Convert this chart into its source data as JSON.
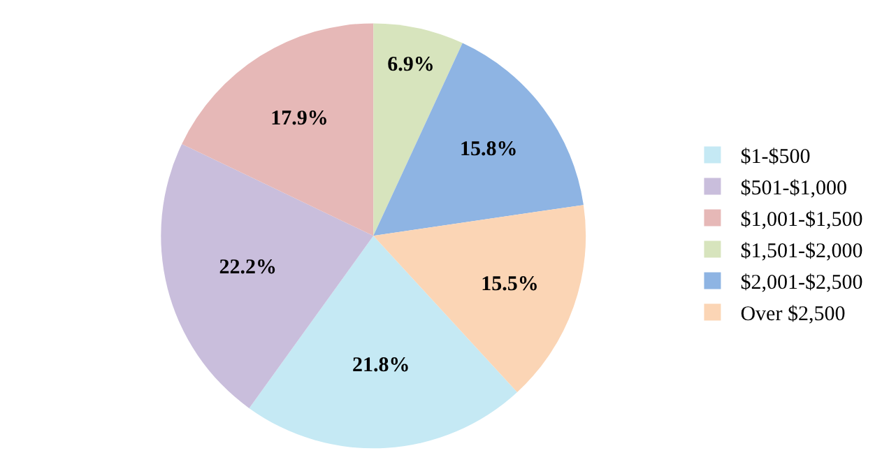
{
  "chart_data": {
    "type": "pie",
    "categories": [
      "$1-$500",
      "$501-$1,000",
      "$1,001-$1,500",
      "$1,501-$2,000",
      "$2,001-$2,500",
      "Over $2,500"
    ],
    "values": [
      21.8,
      22.2,
      17.9,
      6.9,
      15.8,
      15.5
    ],
    "colors": [
      "#c5e9f4",
      "#c9bedc",
      "#e6b8b7",
      "#d7e4bd",
      "#8eb4e3",
      "#fbd5b5"
    ],
    "value_labels": [
      "21.8%",
      "22.2%",
      "17.9%",
      "6.9%",
      "15.8%",
      "15.5%"
    ],
    "legend": "right"
  }
}
